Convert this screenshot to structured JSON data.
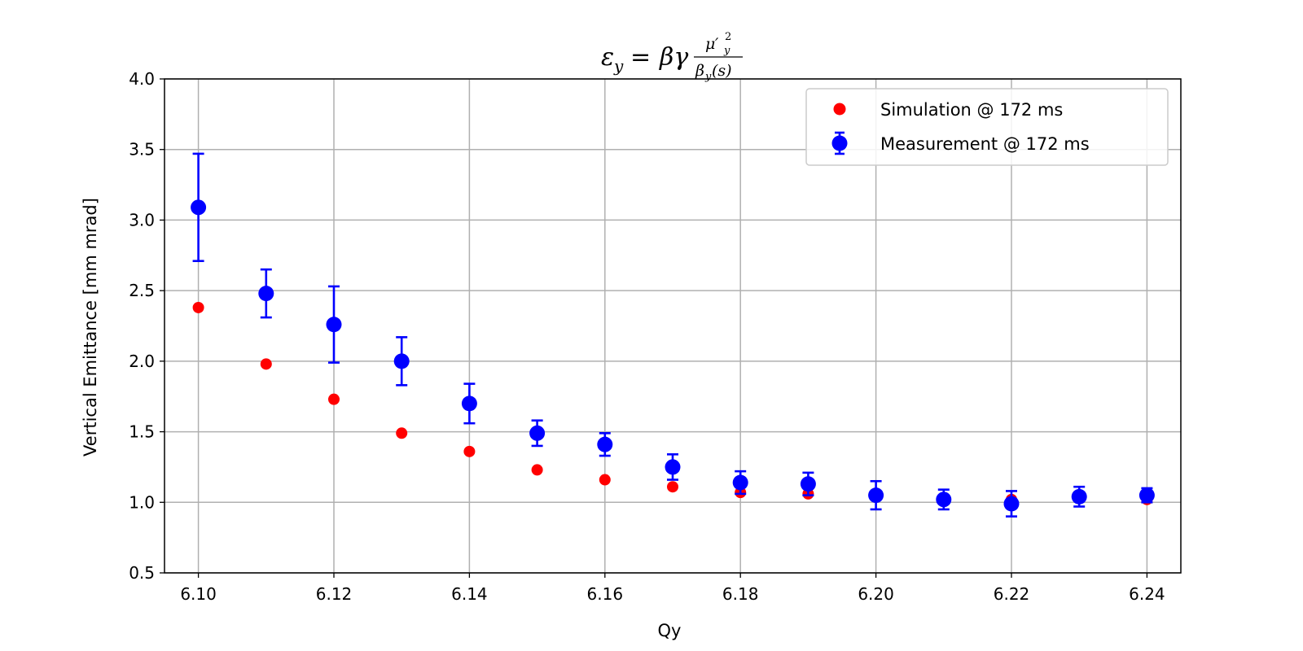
{
  "chart_data": {
    "type": "scatter",
    "title": {
      "lhs_symbol": "ε",
      "lhs_subscript": "y",
      "equals": "=",
      "factor": "βγ",
      "numerator_base": "μ",
      "numerator_prime": "′",
      "numerator_sub": "y",
      "numerator_sup": "2",
      "denominator_base": "β",
      "denominator_sub": "y",
      "denominator_arg": "(s)"
    },
    "xlabel": "Qy",
    "ylabel": "Vertical Emittance [mm mrad]",
    "xlim": [
      6.095,
      6.245
    ],
    "ylim": [
      0.5,
      4.0
    ],
    "xticks": [
      "6.10",
      "6.12",
      "6.14",
      "6.16",
      "6.18",
      "6.20",
      "6.22",
      "6.24"
    ],
    "xtick_values": [
      6.1,
      6.12,
      6.14,
      6.16,
      6.18,
      6.2,
      6.22,
      6.24
    ],
    "yticks": [
      "0.5",
      "1.0",
      "1.5",
      "2.0",
      "2.5",
      "3.0",
      "3.5",
      "4.0"
    ],
    "ytick_values": [
      0.5,
      1.0,
      1.5,
      2.0,
      2.5,
      3.0,
      3.5,
      4.0
    ],
    "grid": true,
    "legend_position": "top-right",
    "series": [
      {
        "name": "Simulation @ 172 ms",
        "color": "#ff0000",
        "marker": "circle",
        "x": [
          6.1,
          6.11,
          6.12,
          6.13,
          6.14,
          6.15,
          6.16,
          6.17,
          6.18,
          6.19,
          6.2,
          6.21,
          6.22,
          6.23,
          6.24
        ],
        "y": [
          2.38,
          1.98,
          1.73,
          1.49,
          1.36,
          1.23,
          1.16,
          1.11,
          1.07,
          1.06,
          1.04,
          1.03,
          1.02,
          1.03,
          1.02
        ]
      },
      {
        "name": "Measurement @ 172 ms",
        "color": "#0000ff",
        "marker": "circle",
        "errorbars": true,
        "x": [
          6.1,
          6.11,
          6.12,
          6.13,
          6.14,
          6.15,
          6.16,
          6.17,
          6.18,
          6.19,
          6.2,
          6.21,
          6.22,
          6.23,
          6.24
        ],
        "y": [
          3.09,
          2.48,
          2.26,
          2.0,
          1.7,
          1.49,
          1.41,
          1.25,
          1.14,
          1.13,
          1.05,
          1.02,
          0.99,
          1.04,
          1.05
        ],
        "yerr": [
          0.38,
          0.17,
          0.27,
          0.17,
          0.14,
          0.09,
          0.08,
          0.09,
          0.08,
          0.08,
          0.1,
          0.07,
          0.09,
          0.07,
          0.05
        ]
      }
    ]
  }
}
